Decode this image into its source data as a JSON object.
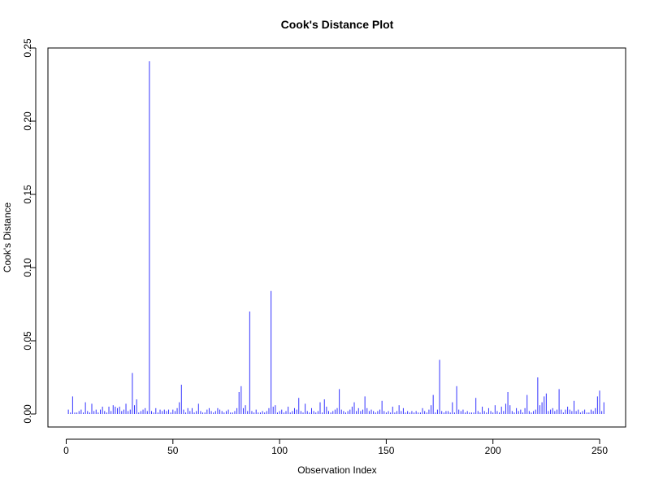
{
  "chart_data": {
    "type": "bar",
    "style": "spike",
    "title": "Cook's Distance Plot",
    "xlabel": "Observation Index",
    "ylabel": "Cook's Distance",
    "xlim": [
      1,
      252
    ],
    "ylim": [
      0,
      0.25
    ],
    "x_ticks": [
      0,
      50,
      100,
      150,
      200,
      250
    ],
    "y_ticks": [
      "0.00",
      "0.05",
      "0.10",
      "0.15",
      "0.20",
      "0.25"
    ],
    "grid": false,
    "legend": "none",
    "bar_color": "#3333ff",
    "values": [
      0.003,
      0.001,
      0.012,
      0.001,
      0.001,
      0.002,
      0.003,
      0.001,
      0.008,
      0.002,
      0.001,
      0.007,
      0.002,
      0.003,
      0.001,
      0.003,
      0.005,
      0.002,
      0.001,
      0.005,
      0.002,
      0.006,
      0.005,
      0.004,
      0.005,
      0.002,
      0.003,
      0.007,
      0.002,
      0.003,
      0.028,
      0.006,
      0.01,
      0.001,
      0.002,
      0.003,
      0.004,
      0.002,
      0.241,
      0.002,
      0.001,
      0.004,
      0.001,
      0.003,
      0.002,
      0.003,
      0.002,
      0.003,
      0.001,
      0.003,
      0.002,
      0.004,
      0.008,
      0.02,
      0.003,
      0.001,
      0.004,
      0.002,
      0.004,
      0.001,
      0.002,
      0.007,
      0.002,
      0.001,
      0.001,
      0.003,
      0.004,
      0.002,
      0.001,
      0.002,
      0.004,
      0.003,
      0.002,
      0.001,
      0.002,
      0.003,
      0.001,
      0.001,
      0.002,
      0.004,
      0.015,
      0.019,
      0.004,
      0.006,
      0.002,
      0.07,
      0.002,
      0.001,
      0.003,
      0.001,
      0.001,
      0.002,
      0.001,
      0.002,
      0.004,
      0.084,
      0.005,
      0.006,
      0.001,
      0.002,
      0.003,
      0.001,
      0.002,
      0.005,
      0.001,
      0.002,
      0.004,
      0.003,
      0.011,
      0.002,
      0.001,
      0.007,
      0.002,
      0.001,
      0.004,
      0.002,
      0.001,
      0.002,
      0.008,
      0.001,
      0.01,
      0.005,
      0.002,
      0.001,
      0.002,
      0.003,
      0.004,
      0.017,
      0.003,
      0.002,
      0.001,
      0.002,
      0.003,
      0.005,
      0.008,
      0.002,
      0.004,
      0.002,
      0.003,
      0.012,
      0.004,
      0.002,
      0.003,
      0.002,
      0.001,
      0.002,
      0.003,
      0.009,
      0.002,
      0.001,
      0.002,
      0.001,
      0.005,
      0.001,
      0.002,
      0.006,
      0.002,
      0.004,
      0.001,
      0.002,
      0.001,
      0.002,
      0.001,
      0.002,
      0.001,
      0.001,
      0.004,
      0.002,
      0.001,
      0.003,
      0.006,
      0.013,
      0.001,
      0.003,
      0.037,
      0.002,
      0.001,
      0.002,
      0.002,
      0.001,
      0.008,
      0.001,
      0.019,
      0.003,
      0.002,
      0.003,
      0.001,
      0.002,
      0.001,
      0.001,
      0.001,
      0.011,
      0.002,
      0.001,
      0.005,
      0.002,
      0.001,
      0.004,
      0.002,
      0.001,
      0.006,
      0.002,
      0.001,
      0.005,
      0.002,
      0.007,
      0.015,
      0.006,
      0.002,
      0.001,
      0.004,
      0.002,
      0.003,
      0.001,
      0.004,
      0.013,
      0.002,
      0.001,
      0.002,
      0.003,
      0.025,
      0.006,
      0.008,
      0.012,
      0.014,
      0.002,
      0.003,
      0.004,
      0.002,
      0.003,
      0.017,
      0.003,
      0.001,
      0.003,
      0.005,
      0.003,
      0.002,
      0.009,
      0.002,
      0.003,
      0.001,
      0.002,
      0.003,
      0.001,
      0.001,
      0.003,
      0.002,
      0.004,
      0.012,
      0.016,
      0.002,
      0.008
    ]
  }
}
